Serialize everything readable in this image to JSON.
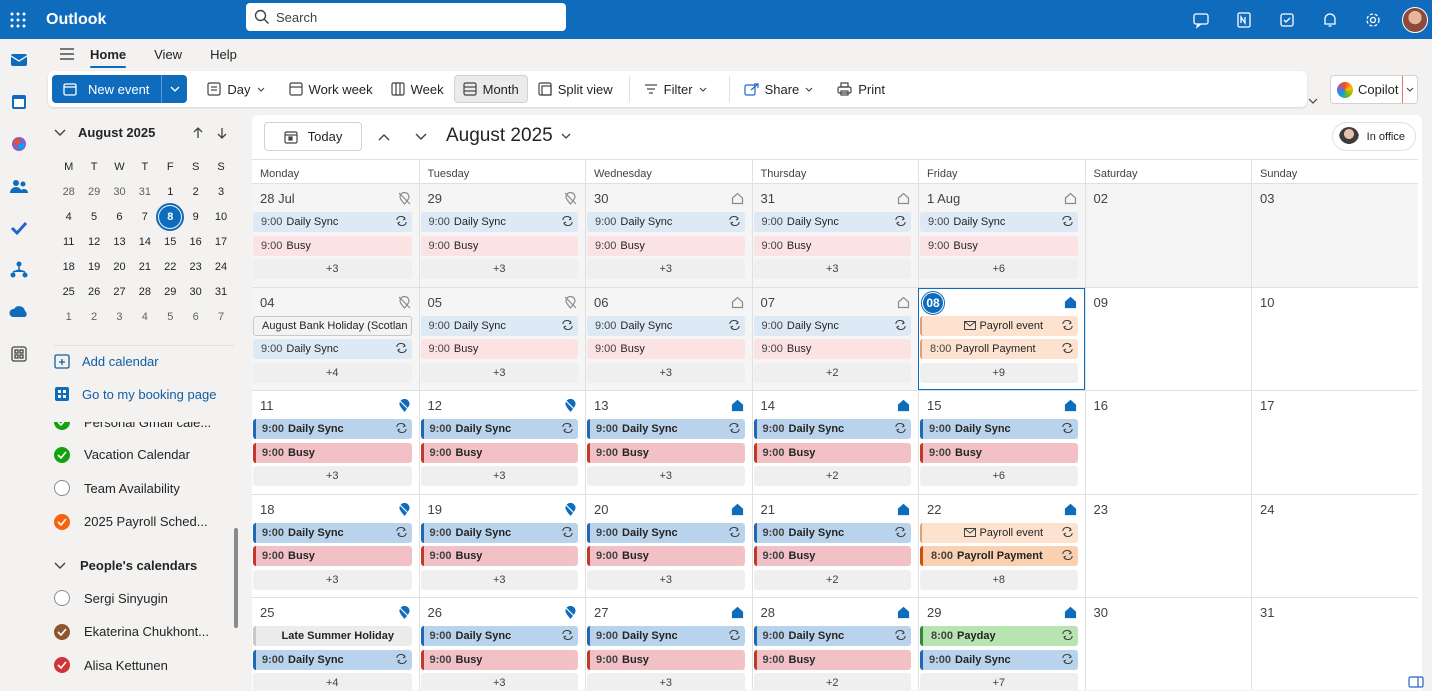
{
  "app": {
    "name": "Outlook"
  },
  "search": {
    "placeholder": "Search"
  },
  "tabs": [
    {
      "label": "Home"
    },
    {
      "label": "View"
    },
    {
      "label": "Help"
    }
  ],
  "ribbon": {
    "new_event": "New event",
    "day": "Day",
    "work_week": "Work week",
    "week": "Week",
    "month": "Month",
    "split_view": "Split view",
    "filter": "Filter",
    "share": "Share",
    "print": "Print",
    "copilot": "Copilot"
  },
  "mini_calendar": {
    "title": "August 2025",
    "dow": [
      "M",
      "T",
      "W",
      "T",
      "F",
      "S",
      "S"
    ],
    "weeks": [
      [
        "28",
        "29",
        "30",
        "31",
        "1",
        "2",
        "3"
      ],
      [
        "4",
        "5",
        "6",
        "7",
        "8",
        "9",
        "10"
      ],
      [
        "11",
        "12",
        "13",
        "14",
        "15",
        "16",
        "17"
      ],
      [
        "18",
        "19",
        "20",
        "21",
        "22",
        "23",
        "24"
      ],
      [
        "25",
        "26",
        "27",
        "28",
        "29",
        "30",
        "31"
      ],
      [
        "1",
        "2",
        "3",
        "4",
        "5",
        "6",
        "7"
      ]
    ],
    "today": "8"
  },
  "sidebar": {
    "add_calendar": "Add calendar",
    "booking": "Go to my booking page",
    "calendars": [
      {
        "name": "Personal Gmail cale...",
        "color": "#13a10e",
        "checked": true
      },
      {
        "name": "Vacation Calendar",
        "color": "#13a10e",
        "checked": true
      },
      {
        "name": "Team Availability",
        "color": "",
        "checked": false
      },
      {
        "name": "2025 Payroll Sched...",
        "color": "#f7630c",
        "checked": true
      }
    ],
    "people_header": "People's calendars",
    "people": [
      {
        "name": "Sergi Sinyugin",
        "color": "",
        "checked": false
      },
      {
        "name": "Ekaterina Chukhont...",
        "color": "#8e562e",
        "checked": true
      },
      {
        "name": "Alisa Kettunen",
        "color": "#d13438",
        "checked": true
      }
    ]
  },
  "main": {
    "today_btn": "Today",
    "month_title": "August 2025",
    "in_office": "In office",
    "dow": [
      "Monday",
      "Tuesday",
      "Wednesday",
      "Thursday",
      "Friday",
      "Saturday",
      "Sunday"
    ]
  },
  "weeks": [
    [
      {
        "num": "28 Jul",
        "events": [
          {
            "time": "9:00",
            "title": "Daily Sync",
            "kind": "past sync",
            "rec": true
          },
          {
            "time": "9:00",
            "title": "Busy",
            "kind": "past busy"
          }
        ],
        "more": "+3",
        "loc": "off",
        "shade": true
      },
      {
        "num": "29",
        "events": [
          {
            "time": "9:00",
            "title": "Daily Sync",
            "kind": "past sync",
            "rec": true
          },
          {
            "time": "9:00",
            "title": "Busy",
            "kind": "past busy"
          }
        ],
        "more": "+3",
        "loc": "off",
        "shade": true
      },
      {
        "num": "30",
        "events": [
          {
            "time": "9:00",
            "title": "Daily Sync",
            "kind": "past sync",
            "rec": true
          },
          {
            "time": "9:00",
            "title": "Busy",
            "kind": "past busy"
          }
        ],
        "more": "+3",
        "loc": "home",
        "shade": true
      },
      {
        "num": "31",
        "events": [
          {
            "time": "9:00",
            "title": "Daily Sync",
            "kind": "past sync",
            "rec": true
          },
          {
            "time": "9:00",
            "title": "Busy",
            "kind": "past busy"
          }
        ],
        "more": "+3",
        "loc": "home",
        "shade": true
      },
      {
        "num": "1 Aug",
        "events": [
          {
            "time": "9:00",
            "title": "Daily Sync",
            "kind": "past sync",
            "rec": true
          },
          {
            "time": "9:00",
            "title": "Busy",
            "kind": "past busy"
          }
        ],
        "more": "+6",
        "loc": "home",
        "shade": true
      },
      {
        "num": "02",
        "events": [],
        "more": "",
        "loc": "",
        "shade": true
      },
      {
        "num": "03",
        "events": [],
        "more": "",
        "loc": "",
        "shade": true
      }
    ],
    [
      {
        "num": "04",
        "events": [
          {
            "time": "",
            "title": "August Bank Holiday (Scotlan",
            "kind": "hol"
          },
          {
            "time": "9:00",
            "title": "Daily Sync",
            "kind": "past sync",
            "rec": true
          }
        ],
        "more": "+4",
        "loc": "off",
        "shade": true
      },
      {
        "num": "05",
        "events": [
          {
            "time": "9:00",
            "title": "Daily Sync",
            "kind": "past sync",
            "rec": true
          },
          {
            "time": "9:00",
            "title": "Busy",
            "kind": "past busy"
          }
        ],
        "more": "+3",
        "loc": "off",
        "shade": true
      },
      {
        "num": "06",
        "events": [
          {
            "time": "9:00",
            "title": "Daily Sync",
            "kind": "past sync",
            "rec": true
          },
          {
            "time": "9:00",
            "title": "Busy",
            "kind": "past busy"
          }
        ],
        "more": "+3",
        "loc": "home",
        "shade": true
      },
      {
        "num": "07",
        "events": [
          {
            "time": "9:00",
            "title": "Daily Sync",
            "kind": "past sync",
            "rec": true
          },
          {
            "time": "9:00",
            "title": "Busy",
            "kind": "past busy"
          }
        ],
        "more": "+2",
        "loc": "home",
        "shade": true
      },
      {
        "num": "08",
        "today": true,
        "events": [
          {
            "time": "",
            "title": "Payroll event",
            "kind": "pay",
            "rec": true,
            "envelope": true
          },
          {
            "time": "8:00",
            "title": "Payroll Payment",
            "kind": "payc",
            "rec": true
          }
        ],
        "more": "+9",
        "loc": "homecur",
        "shade": false
      },
      {
        "num": "09",
        "events": [],
        "more": "",
        "loc": "",
        "shade": false
      },
      {
        "num": "10",
        "events": [],
        "more": "",
        "loc": "",
        "shade": false
      }
    ],
    [
      {
        "num": "11",
        "events": [
          {
            "time": "9:00",
            "title": "Daily Sync",
            "kind": "cur sync",
            "rec": true
          },
          {
            "time": "9:00",
            "title": "Busy",
            "kind": "cur busy"
          }
        ],
        "more": "+3",
        "loc": "offcur"
      },
      {
        "num": "12",
        "events": [
          {
            "time": "9:00",
            "title": "Daily Sync",
            "kind": "cur sync",
            "rec": true
          },
          {
            "time": "9:00",
            "title": "Busy",
            "kind": "cur busy"
          }
        ],
        "more": "+3",
        "loc": "offcur"
      },
      {
        "num": "13",
        "events": [
          {
            "time": "9:00",
            "title": "Daily Sync",
            "kind": "cur sync",
            "rec": true
          },
          {
            "time": "9:00",
            "title": "Busy",
            "kind": "cur busy"
          }
        ],
        "more": "+3",
        "loc": "homecur"
      },
      {
        "num": "14",
        "events": [
          {
            "time": "9:00",
            "title": "Daily Sync",
            "kind": "cur sync",
            "rec": true
          },
          {
            "time": "9:00",
            "title": "Busy",
            "kind": "cur busy"
          }
        ],
        "more": "+2",
        "loc": "homecur"
      },
      {
        "num": "15",
        "events": [
          {
            "time": "9:00",
            "title": "Daily Sync",
            "kind": "cur sync",
            "rec": true
          },
          {
            "time": "9:00",
            "title": "Busy",
            "kind": "cur busy"
          }
        ],
        "more": "+6",
        "loc": "homecur"
      },
      {
        "num": "16",
        "events": [],
        "more": "",
        "loc": ""
      },
      {
        "num": "17",
        "events": [],
        "more": "",
        "loc": ""
      }
    ],
    [
      {
        "num": "18",
        "events": [
          {
            "time": "9:00",
            "title": "Daily Sync",
            "kind": "cur sync",
            "rec": true
          },
          {
            "time": "9:00",
            "title": "Busy",
            "kind": "cur busy"
          }
        ],
        "more": "+3",
        "loc": "offcur"
      },
      {
        "num": "19",
        "events": [
          {
            "time": "9:00",
            "title": "Daily Sync",
            "kind": "cur sync",
            "rec": true
          },
          {
            "time": "9:00",
            "title": "Busy",
            "kind": "cur busy"
          }
        ],
        "more": "+3",
        "loc": "offcur"
      },
      {
        "num": "20",
        "events": [
          {
            "time": "9:00",
            "title": "Daily Sync",
            "kind": "cur sync",
            "rec": true
          },
          {
            "time": "9:00",
            "title": "Busy",
            "kind": "cur busy"
          }
        ],
        "more": "+3",
        "loc": "homecur"
      },
      {
        "num": "21",
        "events": [
          {
            "time": "9:00",
            "title": "Daily Sync",
            "kind": "cur sync",
            "rec": true
          },
          {
            "time": "9:00",
            "title": "Busy",
            "kind": "cur busy"
          }
        ],
        "more": "+2",
        "loc": "homecur"
      },
      {
        "num": "22",
        "events": [
          {
            "time": "",
            "title": "Payroll event",
            "kind": "pay",
            "rec": true,
            "envelope": true
          },
          {
            "time": "8:00",
            "title": "Payroll Payment",
            "kind": "paycur",
            "rec": true
          }
        ],
        "more": "+8",
        "loc": "homecur"
      },
      {
        "num": "23",
        "events": [],
        "more": "",
        "loc": ""
      },
      {
        "num": "24",
        "events": [],
        "more": "",
        "loc": ""
      }
    ],
    [
      {
        "num": "25",
        "events": [
          {
            "time": "",
            "title": "Late Summer Holiday",
            "kind": "holcur"
          },
          {
            "time": "9:00",
            "title": "Daily Sync",
            "kind": "cur sync",
            "rec": true
          }
        ],
        "more": "+4",
        "loc": "offcur"
      },
      {
        "num": "26",
        "events": [
          {
            "time": "9:00",
            "title": "Daily Sync",
            "kind": "cur sync",
            "rec": true
          },
          {
            "time": "9:00",
            "title": "Busy",
            "kind": "cur busy"
          }
        ],
        "more": "+3",
        "loc": "offcur"
      },
      {
        "num": "27",
        "events": [
          {
            "time": "9:00",
            "title": "Daily Sync",
            "kind": "cur sync",
            "rec": true
          },
          {
            "time": "9:00",
            "title": "Busy",
            "kind": "cur busy"
          }
        ],
        "more": "+3",
        "loc": "homecur"
      },
      {
        "num": "28",
        "events": [
          {
            "time": "9:00",
            "title": "Daily Sync",
            "kind": "cur sync",
            "rec": true
          },
          {
            "time": "9:00",
            "title": "Busy",
            "kind": "cur busy"
          }
        ],
        "more": "+2",
        "loc": "homecur"
      },
      {
        "num": "29",
        "events": [
          {
            "time": "8:00",
            "title": "Payday",
            "kind": "payday",
            "rec": true
          },
          {
            "time": "9:00",
            "title": "Daily Sync",
            "kind": "cur sync",
            "rec": true
          }
        ],
        "more": "+7",
        "loc": "homecur"
      },
      {
        "num": "30",
        "events": [],
        "more": "",
        "loc": ""
      },
      {
        "num": "31",
        "events": [],
        "more": "",
        "loc": ""
      }
    ]
  ]
}
